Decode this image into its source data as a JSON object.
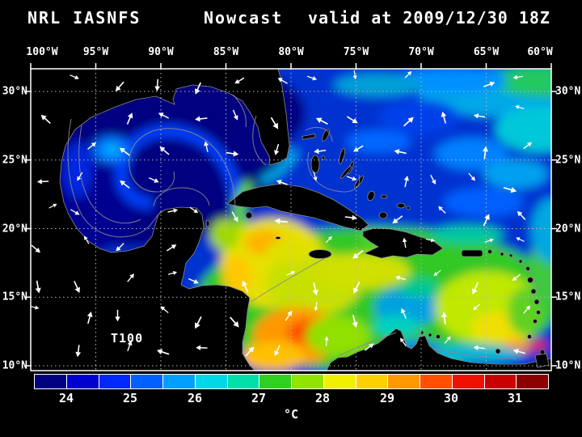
{
  "header": {
    "model": "NRL IASNFS",
    "product": "Nowcast",
    "valid": "valid at 2009/12/30 18Z"
  },
  "axes": {
    "lon": [
      "100°W",
      "95°W",
      "90°W",
      "85°W",
      "80°W",
      "75°W",
      "70°W",
      "65°W",
      "60°W"
    ],
    "lat": [
      "30°N",
      "25°N",
      "20°N",
      "15°N",
      "10°N"
    ]
  },
  "annotation": {
    "field": "T100"
  },
  "colorbar": {
    "ticks": [
      "24",
      "25",
      "26",
      "27",
      "28",
      "29",
      "30",
      "31"
    ],
    "unit": "°C",
    "segments": [
      "#000080",
      "#0000d0",
      "#0028ff",
      "#0060ff",
      "#00a0ff",
      "#00d8e8",
      "#00e0a8",
      "#30d020",
      "#90e400",
      "#f0f000",
      "#ffd000",
      "#ff9800",
      "#ff5000",
      "#f01000",
      "#c80000",
      "#8c0000"
    ]
  }
}
